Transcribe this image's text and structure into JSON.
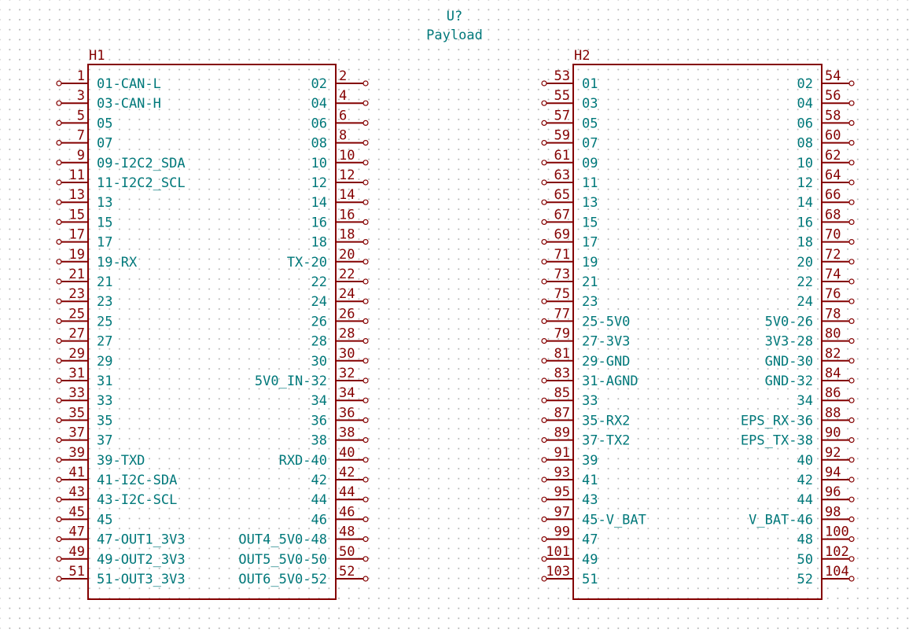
{
  "symbol": {
    "reference": "U?",
    "value": "Payload"
  },
  "colors": {
    "body": "#840000",
    "text_names": "#00787a",
    "grid": "#b8b8b8"
  },
  "headers": [
    {
      "designator": "H1",
      "left_pins": [
        {
          "num": "1",
          "name": "01-CAN-L"
        },
        {
          "num": "3",
          "name": "03-CAN-H"
        },
        {
          "num": "5",
          "name": "05"
        },
        {
          "num": "7",
          "name": "07"
        },
        {
          "num": "9",
          "name": "09-I2C2_SDA"
        },
        {
          "num": "11",
          "name": "11-I2C2_SCL"
        },
        {
          "num": "13",
          "name": "13"
        },
        {
          "num": "15",
          "name": "15"
        },
        {
          "num": "17",
          "name": "17"
        },
        {
          "num": "19",
          "name": "19-RX"
        },
        {
          "num": "21",
          "name": "21"
        },
        {
          "num": "23",
          "name": "23"
        },
        {
          "num": "25",
          "name": "25"
        },
        {
          "num": "27",
          "name": "27"
        },
        {
          "num": "29",
          "name": "29"
        },
        {
          "num": "31",
          "name": "31"
        },
        {
          "num": "33",
          "name": "33"
        },
        {
          "num": "35",
          "name": "35"
        },
        {
          "num": "37",
          "name": "37"
        },
        {
          "num": "39",
          "name": "39-TXD"
        },
        {
          "num": "41",
          "name": "41-I2C-SDA"
        },
        {
          "num": "43",
          "name": "43-I2C-SCL"
        },
        {
          "num": "45",
          "name": "45"
        },
        {
          "num": "47",
          "name": "47-OUT1_3V3"
        },
        {
          "num": "49",
          "name": "49-OUT2_3V3"
        },
        {
          "num": "51",
          "name": "51-OUT3_3V3"
        }
      ],
      "right_pins": [
        {
          "num": "2",
          "name": "02"
        },
        {
          "num": "4",
          "name": "04"
        },
        {
          "num": "6",
          "name": "06"
        },
        {
          "num": "8",
          "name": "08"
        },
        {
          "num": "10",
          "name": "10"
        },
        {
          "num": "12",
          "name": "12"
        },
        {
          "num": "14",
          "name": "14"
        },
        {
          "num": "16",
          "name": "16"
        },
        {
          "num": "18",
          "name": "18"
        },
        {
          "num": "20",
          "name": "TX-20"
        },
        {
          "num": "22",
          "name": "22"
        },
        {
          "num": "24",
          "name": "24"
        },
        {
          "num": "26",
          "name": "26"
        },
        {
          "num": "28",
          "name": "28"
        },
        {
          "num": "30",
          "name": "30"
        },
        {
          "num": "32",
          "name": "5V0_IN-32"
        },
        {
          "num": "34",
          "name": "34"
        },
        {
          "num": "36",
          "name": "36"
        },
        {
          "num": "38",
          "name": "38"
        },
        {
          "num": "40",
          "name": "RXD-40"
        },
        {
          "num": "42",
          "name": "42"
        },
        {
          "num": "44",
          "name": "44"
        },
        {
          "num": "46",
          "name": "46"
        },
        {
          "num": "48",
          "name": "OUT4_5V0-48"
        },
        {
          "num": "50",
          "name": "OUT5_5V0-50"
        },
        {
          "num": "52",
          "name": "OUT6_5V0-52"
        }
      ]
    },
    {
      "designator": "H2",
      "left_pins": [
        {
          "num": "53",
          "name": "01"
        },
        {
          "num": "55",
          "name": "03"
        },
        {
          "num": "57",
          "name": "05"
        },
        {
          "num": "59",
          "name": "07"
        },
        {
          "num": "61",
          "name": "09"
        },
        {
          "num": "63",
          "name": "11"
        },
        {
          "num": "65",
          "name": "13"
        },
        {
          "num": "67",
          "name": "15"
        },
        {
          "num": "69",
          "name": "17"
        },
        {
          "num": "71",
          "name": "19"
        },
        {
          "num": "73",
          "name": "21"
        },
        {
          "num": "75",
          "name": "23"
        },
        {
          "num": "77",
          "name": "25-5V0"
        },
        {
          "num": "79",
          "name": "27-3V3"
        },
        {
          "num": "81",
          "name": "29-GND"
        },
        {
          "num": "83",
          "name": "31-AGND"
        },
        {
          "num": "85",
          "name": "33"
        },
        {
          "num": "87",
          "name": "35-RX2"
        },
        {
          "num": "89",
          "name": "37-TX2"
        },
        {
          "num": "91",
          "name": "39"
        },
        {
          "num": "93",
          "name": "41"
        },
        {
          "num": "95",
          "name": "43"
        },
        {
          "num": "97",
          "name": "45-V_BAT"
        },
        {
          "num": "99",
          "name": "47"
        },
        {
          "num": "101",
          "name": "49"
        },
        {
          "num": "103",
          "name": "51"
        }
      ],
      "right_pins": [
        {
          "num": "54",
          "name": "02"
        },
        {
          "num": "56",
          "name": "04"
        },
        {
          "num": "58",
          "name": "06"
        },
        {
          "num": "60",
          "name": "08"
        },
        {
          "num": "62",
          "name": "10"
        },
        {
          "num": "64",
          "name": "12"
        },
        {
          "num": "66",
          "name": "14"
        },
        {
          "num": "68",
          "name": "16"
        },
        {
          "num": "70",
          "name": "18"
        },
        {
          "num": "72",
          "name": "20"
        },
        {
          "num": "74",
          "name": "22"
        },
        {
          "num": "76",
          "name": "24"
        },
        {
          "num": "78",
          "name": "5V0-26"
        },
        {
          "num": "80",
          "name": "3V3-28"
        },
        {
          "num": "82",
          "name": "GND-30"
        },
        {
          "num": "84",
          "name": "GND-32"
        },
        {
          "num": "86",
          "name": "34"
        },
        {
          "num": "88",
          "name": "EPS_RX-36"
        },
        {
          "num": "90",
          "name": "EPS_TX-38"
        },
        {
          "num": "92",
          "name": "40"
        },
        {
          "num": "94",
          "name": "42"
        },
        {
          "num": "96",
          "name": "44"
        },
        {
          "num": "98",
          "name": "V_BAT-46"
        },
        {
          "num": "100",
          "name": "48"
        },
        {
          "num": "102",
          "name": "50"
        },
        {
          "num": "104",
          "name": "52"
        }
      ]
    }
  ]
}
